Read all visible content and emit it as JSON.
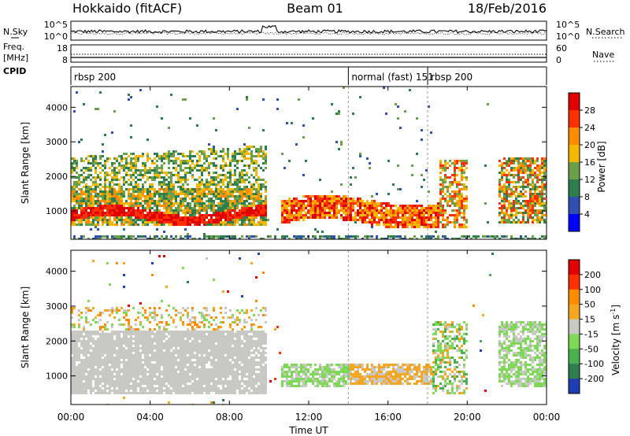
{
  "header": {
    "station": "Hokkaido (fitACF)",
    "beam": "Beam 01",
    "date": "18/Feb/2016"
  },
  "strips": {
    "nsky_label": "N.Sky",
    "nsearch_label": "N.Search",
    "noise_ticks": [
      "10^5",
      "10^0"
    ],
    "freq_label_1": "Freq.",
    "freq_label_2": "[MHz]",
    "freq_ticks": [
      "18",
      "8"
    ],
    "nave_label": "Nave",
    "nave_ticks": [
      "60",
      "0"
    ],
    "cpid_label": "CPID",
    "cpid_segments": [
      {
        "start": 0.0,
        "end": 14.0,
        "label": "rbsp 200"
      },
      {
        "start": 14.0,
        "end": 18.0,
        "label": "normal (fast) 151"
      },
      {
        "start": 18.0,
        "end": 24.0,
        "label": "rbsp 200"
      }
    ]
  },
  "chart_data": [
    {
      "type": "heatmap",
      "title": "",
      "parameter": "Power",
      "xlabel": "Time UT",
      "ylabel": "Slant Range [km]",
      "xlim": [
        0,
        24
      ],
      "ylim": [
        180,
        4600
      ],
      "yticks": [
        "1000",
        "2000",
        "3000",
        "4000"
      ],
      "colorbar": {
        "label": "Power [dB]",
        "range": [
          0,
          32
        ],
        "ticks": [
          "28",
          "24",
          "20",
          "16",
          "12",
          "8",
          "4"
        ],
        "colors": [
          "#0000ff",
          "#3050b0",
          "#2e7d4f",
          "#6aa04a",
          "#f5b800",
          "#ff8c00",
          "#ff3000",
          "#e00000"
        ]
      },
      "features": [
        {
          "t": [
            0.0,
            9.8
          ],
          "range": [
            800,
            1500
          ],
          "value_db": 26,
          "note": "strong band"
        },
        {
          "t": [
            0.5,
            9.0
          ],
          "range": [
            1500,
            3000
          ],
          "value_db": 14
        },
        {
          "t": [
            10.5,
            18.5
          ],
          "range": [
            600,
            1400
          ],
          "value_db": 30
        },
        {
          "t": [
            18.5,
            20.0
          ],
          "range": [
            600,
            2500
          ],
          "value_db": 22
        },
        {
          "t": [
            21.5,
            24.0
          ],
          "range": [
            800,
            2500
          ],
          "value_db": 20
        }
      ]
    },
    {
      "type": "heatmap",
      "title": "",
      "parameter": "Velocity",
      "xlabel": "Time UT",
      "ylabel": "Slant Range [km]",
      "xlim": [
        0,
        24
      ],
      "ylim": [
        180,
        4600
      ],
      "yticks": [
        "1000",
        "2000",
        "3000",
        "4000"
      ],
      "xticks": [
        "00:00",
        "04:00",
        "08:00",
        "12:00",
        "16:00",
        "20:00",
        "00:00"
      ],
      "colorbar": {
        "label": "Velocity [m s^-1]",
        "range": [
          -250,
          250
        ],
        "ticks": [
          "200",
          "100",
          "50",
          "15",
          "-15",
          "-50",
          "-100",
          "-200"
        ],
        "colors": [
          "#1f3fb0",
          "#2e7d4f",
          "#4caf50",
          "#7ed957",
          "#c8c8c4",
          "#f5a623",
          "#ff8c00",
          "#ff3000",
          "#e00000"
        ]
      },
      "features": [
        {
          "t": [
            0.0,
            9.5
          ],
          "range": [
            600,
            2200
          ],
          "value": 0,
          "note": "ground scatter (grey)"
        },
        {
          "t": [
            10.5,
            14.0
          ],
          "range": [
            600,
            1400
          ],
          "value": 60
        },
        {
          "t": [
            14.0,
            18.0
          ],
          "range": [
            800,
            1400
          ],
          "value": -40
        },
        {
          "t": [
            21.5,
            24.0
          ],
          "range": [
            800,
            2500
          ],
          "value": 40
        }
      ]
    }
  ]
}
